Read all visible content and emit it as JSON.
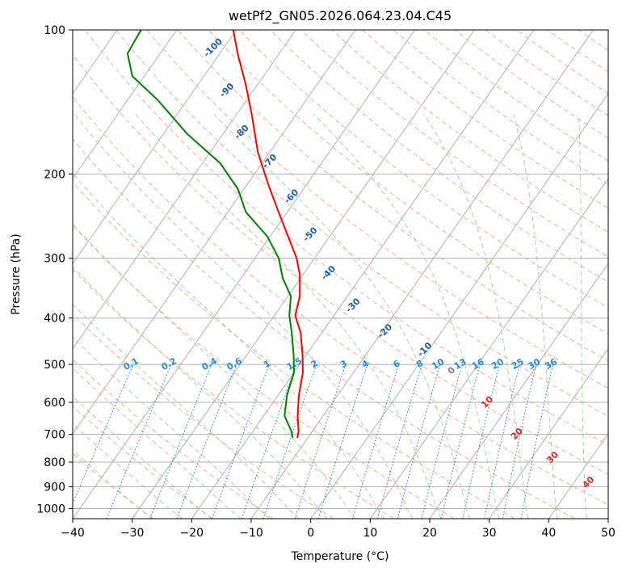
{
  "chart_data": {
    "type": "skew-t",
    "title": "wetPf2_GN05.2026.064.23.04.C45",
    "xlabel": "Temperature (°C)",
    "ylabel": "Pressure (hPa)",
    "xlim": [
      -40,
      50
    ],
    "ylim": [
      1050,
      100
    ],
    "x_ticks": [
      -40,
      -30,
      -20,
      -10,
      0,
      10,
      20,
      30,
      40,
      50
    ],
    "x_tick_labels": [
      "−40",
      "−30",
      "−20",
      "−10",
      "0",
      "10",
      "20",
      "30",
      "40",
      "50"
    ],
    "y_ticks": [
      1000,
      900,
      800,
      700,
      600,
      500,
      400,
      300,
      200,
      100
    ],
    "y_tick_labels": [
      "1000",
      "900",
      "800",
      "700",
      "600",
      "500",
      "400",
      "300",
      "200",
      "100"
    ],
    "series": [
      {
        "name": "temperature",
        "color": "#ff0000",
        "points": [
          {
            "p": 710,
            "t": -11.8
          },
          {
            "p": 690,
            "t": -12.3
          },
          {
            "p": 640,
            "t": -14.3
          },
          {
            "p": 580,
            "t": -16.5
          },
          {
            "p": 520,
            "t": -18.5
          },
          {
            "p": 480,
            "t": -20.5
          },
          {
            "p": 430,
            "t": -23.5
          },
          {
            "p": 395,
            "t": -26.5
          },
          {
            "p": 360,
            "t": -28.0
          },
          {
            "p": 325,
            "t": -30.5
          },
          {
            "p": 300,
            "t": -33.0
          },
          {
            "p": 270,
            "t": -37.0
          },
          {
            "p": 240,
            "t": -41.5
          },
          {
            "p": 210,
            "t": -46.5
          },
          {
            "p": 180,
            "t": -52.0
          },
          {
            "p": 150,
            "t": -57.5
          },
          {
            "p": 130,
            "t": -62.0
          },
          {
            "p": 112,
            "t": -67.0
          },
          {
            "p": 100,
            "t": -70.5
          }
        ]
      },
      {
        "name": "dewpoint",
        "color": "#008000",
        "points": [
          {
            "p": 710,
            "t": -12.6
          },
          {
            "p": 690,
            "t": -13.5
          },
          {
            "p": 640,
            "t": -16.5
          },
          {
            "p": 580,
            "t": -18.5
          },
          {
            "p": 520,
            "t": -20.0
          },
          {
            "p": 480,
            "t": -22.0
          },
          {
            "p": 430,
            "t": -25.0
          },
          {
            "p": 395,
            "t": -27.5
          },
          {
            "p": 360,
            "t": -29.5
          },
          {
            "p": 330,
            "t": -33.0
          },
          {
            "p": 300,
            "t": -36.0
          },
          {
            "p": 270,
            "t": -40.5
          },
          {
            "p": 240,
            "t": -47.0
          },
          {
            "p": 215,
            "t": -51.0
          },
          {
            "p": 190,
            "t": -57.0
          },
          {
            "p": 165,
            "t": -66.0
          },
          {
            "p": 140,
            "t": -75.0
          },
          {
            "p": 125,
            "t": -82.0
          },
          {
            "p": 112,
            "t": -85.5
          },
          {
            "p": 100,
            "t": -86.0
          }
        ]
      }
    ],
    "dry_adiabat_labels": [
      "-100",
      "-90",
      "-80",
      "-70",
      "-60",
      "-50",
      "-40",
      "-30",
      "-20",
      "-10"
    ],
    "moist_adiabat_labels": [
      "0",
      "10",
      "20",
      "30",
      "40"
    ],
    "mixing_ratio_labels": [
      "0.1",
      "0.2",
      "0.4",
      "0.6",
      "1",
      "1.5",
      "2",
      "3",
      "4",
      "6",
      "8",
      "10",
      "13",
      "16",
      "20",
      "25",
      "30",
      "36"
    ],
    "colors": {
      "isotherm": "#b0b0b0",
      "dry_adiabat": "#f5a58a",
      "moist_adiabat": "#8fcc8f",
      "mixing_ratio": "#1f77d4",
      "dry_label": "#1f5fa0",
      "moist_label": "#d62728",
      "mix_label": "#2b8cd8",
      "zero_label": "#808080"
    }
  }
}
